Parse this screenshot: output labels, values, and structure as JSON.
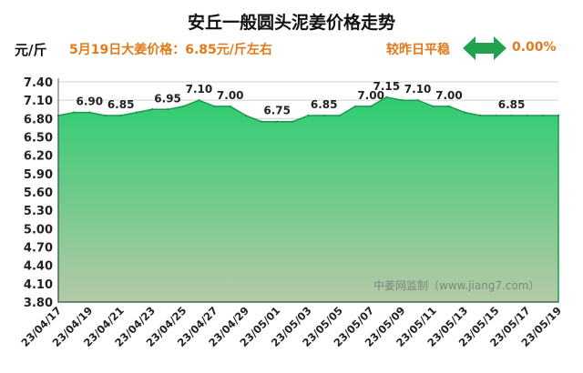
{
  "header": {
    "title": "安丘一般圆头泥姜价格走势",
    "unit": "元/斤",
    "price_text": "5月19日大姜价格：6.85元/斤左右",
    "compare_text": "较昨日平稳",
    "change_pct": "0.00%"
  },
  "colors": {
    "fill_top": "#2ecc71",
    "fill_bottom": "#b5c9a8",
    "line": "#1a9a4a",
    "accent": "#e07a1a",
    "arrow": "#22a14f"
  },
  "chart_data": {
    "type": "area",
    "title": "安丘一般圆头泥姜价格走势",
    "ylabel": "元/斤",
    "ylim": [
      3.8,
      7.4
    ],
    "yticks": [
      "3.80",
      "4.10",
      "4.40",
      "4.70",
      "5.00",
      "5.30",
      "5.60",
      "5.90",
      "6.20",
      "6.50",
      "6.80",
      "7.10",
      "7.40"
    ],
    "x": [
      "23/04/17",
      "23/04/18",
      "23/04/19",
      "23/04/20",
      "23/04/21",
      "23/04/22",
      "23/04/23",
      "23/04/24",
      "23/04/25",
      "23/04/26",
      "23/04/27",
      "23/04/28",
      "23/04/29",
      "23/04/30",
      "23/05/01",
      "23/05/02",
      "23/05/03",
      "23/05/04",
      "23/05/05",
      "23/05/06",
      "23/05/07",
      "23/05/08",
      "23/05/09",
      "23/05/10",
      "23/05/11",
      "23/05/12",
      "23/05/13",
      "23/05/14",
      "23/05/15",
      "23/05/16",
      "23/05/17",
      "23/05/18",
      "23/05/19"
    ],
    "xticks": [
      "23/04/17",
      "23/04/19",
      "23/04/21",
      "23/04/23",
      "23/04/25",
      "23/04/27",
      "23/04/29",
      "23/05/01",
      "23/05/03",
      "23/05/05",
      "23/05/07",
      "23/05/09",
      "23/05/11",
      "23/05/13",
      "23/05/15",
      "23/05/17",
      "23/05/19"
    ],
    "values": [
      6.85,
      6.9,
      6.9,
      6.85,
      6.85,
      6.9,
      6.95,
      6.95,
      7.0,
      7.1,
      7.0,
      7.0,
      6.85,
      6.75,
      6.75,
      6.75,
      6.85,
      6.85,
      6.85,
      7.0,
      7.0,
      7.15,
      7.1,
      7.1,
      7.0,
      7.0,
      6.9,
      6.85,
      6.85,
      6.85,
      6.85,
      6.85,
      6.85
    ],
    "data_labels": [
      {
        "index": 2,
        "text": "6.90"
      },
      {
        "index": 4,
        "text": "6.85"
      },
      {
        "index": 7,
        "text": "6.95"
      },
      {
        "index": 9,
        "text": "7.10"
      },
      {
        "index": 11,
        "text": "7.00"
      },
      {
        "index": 14,
        "text": "6.75"
      },
      {
        "index": 17,
        "text": "6.85"
      },
      {
        "index": 20,
        "text": "7.00"
      },
      {
        "index": 21,
        "text": "7.15"
      },
      {
        "index": 23,
        "text": "7.10"
      },
      {
        "index": 25,
        "text": "7.00"
      },
      {
        "index": 29,
        "text": "6.85"
      }
    ],
    "watermark": "中姜网监制（www.jiang7.com）"
  }
}
